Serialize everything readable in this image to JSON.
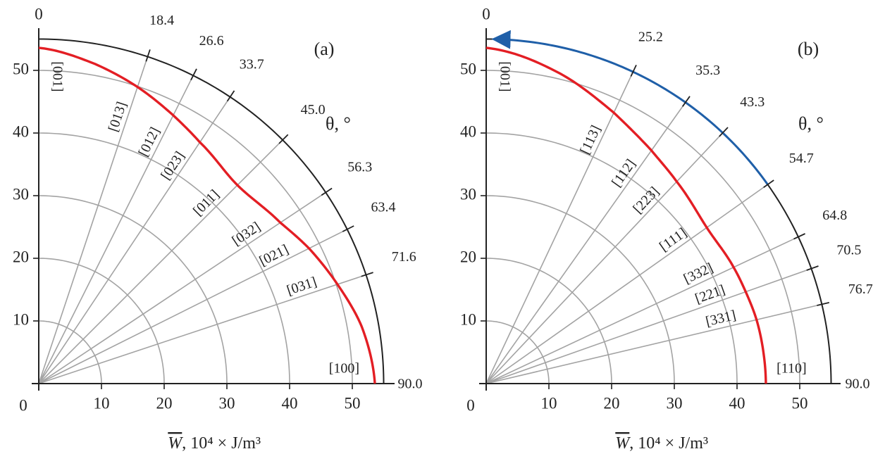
{
  "chart_data": [
    {
      "type": "line",
      "panel_label": "(a)",
      "coordinate_system": "polar-quadrant",
      "angle_axis": {
        "label": "θ, °",
        "zero_direction": "vertical",
        "range_deg": [
          0,
          90
        ]
      },
      "radial_axis": {
        "range": [
          0,
          55
        ],
        "ticks": [
          0,
          10,
          20,
          30,
          40,
          50
        ]
      },
      "xlabel": "W, 10⁴ × J/m³",
      "xlabel_parts": {
        "symbol": "W",
        "units": ", 10⁴ × J/m³"
      },
      "grid": true,
      "rays": [
        {
          "angle": 18.4,
          "label": "18.4",
          "direction": "[013]"
        },
        {
          "angle": 26.6,
          "label": "26.6",
          "direction": "[012]"
        },
        {
          "angle": 33.7,
          "label": "33.7",
          "direction": "[023]"
        },
        {
          "angle": 45.0,
          "label": "45.0",
          "direction": "[011]"
        },
        {
          "angle": 56.3,
          "label": "56.3",
          "direction": "[032]"
        },
        {
          "angle": 63.4,
          "label": "63.4",
          "direction": "[021]"
        },
        {
          "angle": 71.6,
          "label": "71.6",
          "direction": "[031]"
        },
        {
          "angle": 90.0,
          "label": "90.0",
          "direction": "[100]"
        }
      ],
      "zero_direction_label": "[001]",
      "series": [
        {
          "color": "#e31e24",
          "theta": [
            0,
            10,
            18.4,
            26.6,
            33.7,
            45,
            56.3,
            63.4,
            71.6,
            80,
            90
          ],
          "r": [
            53.6,
            51.8,
            49.9,
            47.9,
            46.3,
            44.8,
            46.3,
            48.2,
            50.2,
            52.3,
            53.6
          ]
        }
      ],
      "colors": {
        "curve": "#e31e24",
        "grid": "#a3a3a3",
        "outer_arc": "#222222"
      }
    },
    {
      "type": "line",
      "panel_label": "(b)",
      "coordinate_system": "polar-quadrant",
      "angle_axis": {
        "label": "θ, °",
        "zero_direction": "vertical",
        "range_deg": [
          0,
          90
        ]
      },
      "radial_axis": {
        "range": [
          0,
          55
        ],
        "ticks": [
          0,
          10,
          20,
          30,
          40,
          50
        ]
      },
      "xlabel": "W, 10⁴ × J/m³",
      "xlabel_parts": {
        "symbol": "W",
        "units": ", 10⁴ × J/m³"
      },
      "grid": true,
      "rays": [
        {
          "angle": 25.2,
          "label": "25.2",
          "direction": "[113]"
        },
        {
          "angle": 35.3,
          "label": "35.3",
          "direction": "[112]"
        },
        {
          "angle": 43.3,
          "label": "43.3",
          "direction": "[223]"
        },
        {
          "angle": 54.7,
          "label": "54.7",
          "direction": "[111]"
        },
        {
          "angle": 64.8,
          "label": "64.8",
          "direction": "[332]"
        },
        {
          "angle": 70.5,
          "label": "70.5",
          "direction": "[221]"
        },
        {
          "angle": 76.7,
          "label": "76.7",
          "direction": "[331]"
        },
        {
          "angle": 90.0,
          "label": "90.0",
          "direction": "[110]"
        }
      ],
      "zero_direction_label": "[001]",
      "series": [
        {
          "color": "#e31e24",
          "theta": [
            0,
            12,
            25.2,
            35.3,
            43.3,
            54.7,
            64.8,
            70.5,
            76.7,
            84,
            90
          ],
          "r": [
            53.6,
            51.2,
            47.8,
            45.6,
            44.3,
            43.1,
            43.6,
            43.9,
            44.3,
            44.5,
            44.6
          ]
        }
      ],
      "arrow": {
        "color": "#1f5fa8",
        "theta_start": 54.7,
        "theta_end": 0,
        "r": 55
      },
      "colors": {
        "curve": "#e31e24",
        "arrow": "#1f5fa8",
        "grid": "#a3a3a3",
        "outer_arc": "#222222"
      }
    }
  ]
}
